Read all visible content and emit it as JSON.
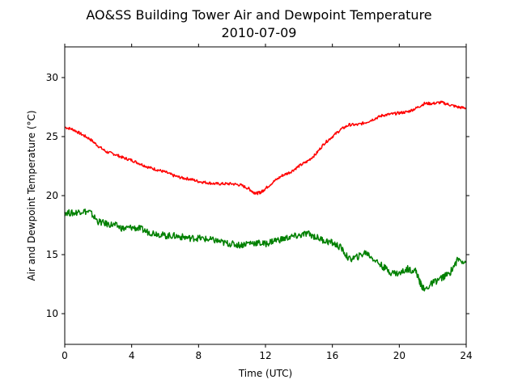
{
  "chart_data": {
    "type": "line",
    "title": "AO&SS Building Tower Air and Dewpoint Temperature",
    "subtitle": "2010-07-09",
    "xlabel": "Time (UTC)",
    "ylabel": "Air and Dewpoint Temperature (°C)",
    "xlim": [
      0,
      24
    ],
    "ylim": [
      7.4,
      32.6
    ],
    "xticks": [
      0,
      4,
      8,
      12,
      16,
      20,
      24
    ],
    "yticks": [
      10,
      15,
      20,
      25,
      30
    ],
    "grid": false,
    "legend": "none",
    "series": [
      {
        "color": "#ff0000",
        "x": [
          0,
          0.5,
          1,
          1.5,
          2,
          2.5,
          3,
          3.5,
          4,
          4.5,
          5,
          5.5,
          6,
          6.5,
          7,
          7.5,
          8,
          8.5,
          9,
          9.5,
          10,
          10.5,
          11,
          11.25,
          11.5,
          11.75,
          12,
          12.5,
          13,
          13.5,
          14,
          14.5,
          15,
          15.5,
          16,
          16.5,
          17,
          17.5,
          18,
          18.5,
          19,
          19.5,
          20,
          20.5,
          21,
          21.5,
          22,
          22.5,
          23,
          23.5,
          24
        ],
        "y": [
          25.8,
          25.6,
          25.2,
          24.8,
          24.2,
          23.7,
          23.5,
          23.2,
          23.0,
          22.7,
          22.4,
          22.2,
          22.0,
          21.7,
          21.5,
          21.4,
          21.2,
          21.1,
          21.0,
          21.0,
          21.0,
          20.9,
          20.6,
          20.3,
          20.2,
          20.3,
          20.6,
          21.2,
          21.7,
          22.0,
          22.5,
          22.9,
          23.5,
          24.4,
          25.0,
          25.6,
          26.0,
          26.0,
          26.2,
          26.5,
          26.8,
          26.9,
          27.0,
          27.1,
          27.4,
          27.8,
          27.8,
          27.9,
          27.7,
          27.5,
          27.4
        ]
      },
      {
        "color": "#008000",
        "x": [
          0,
          0.5,
          1,
          1.5,
          2,
          2.5,
          3,
          3.5,
          4,
          4.5,
          5,
          5.5,
          6,
          6.5,
          7,
          7.5,
          8,
          8.5,
          9,
          9.5,
          10,
          10.5,
          11,
          11.5,
          12,
          12.5,
          13,
          13.5,
          14,
          14.5,
          15,
          15.5,
          16,
          16.5,
          17,
          17.5,
          18,
          18.5,
          19,
          19.5,
          20,
          20.5,
          21,
          21.25,
          21.5,
          22,
          22.5,
          23,
          23.5,
          24
        ],
        "y": [
          18.6,
          18.5,
          18.7,
          18.6,
          17.8,
          17.6,
          17.5,
          17.2,
          17.3,
          17.2,
          16.9,
          16.8,
          16.6,
          16.6,
          16.5,
          16.4,
          16.4,
          16.3,
          16.2,
          16.0,
          15.9,
          15.8,
          16.0,
          16.0,
          15.9,
          16.2,
          16.3,
          16.5,
          16.6,
          16.8,
          16.5,
          16.2,
          16.0,
          15.6,
          14.6,
          14.8,
          15.2,
          14.6,
          14.0,
          13.5,
          13.4,
          13.8,
          13.6,
          12.6,
          12.0,
          12.6,
          13.0,
          13.4,
          14.6,
          14.4
        ]
      }
    ]
  }
}
